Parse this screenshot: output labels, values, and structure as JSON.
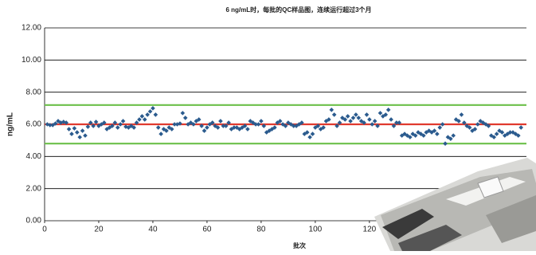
{
  "chart_data": {
    "type": "scatter",
    "title": "6 ng/mL时，每批的QC样品图，连续运行超过3个月",
    "x_label": "批次",
    "y_label": "ng/mL",
    "marker_color": "#2b5b8e",
    "reference_lines": [
      {
        "value": 6.0,
        "color": "#e03a2f"
      },
      {
        "value": 7.2,
        "color": "#6cc04a"
      },
      {
        "value": 4.8,
        "color": "#6cc04a"
      }
    ],
    "xlim": [
      0,
      178
    ],
    "ylim": [
      0,
      12
    ],
    "xticks": [
      0,
      20,
      40,
      60,
      80,
      100,
      120
    ],
    "yticks": [
      {
        "value": 0,
        "label": "0.00"
      },
      {
        "value": 2,
        "label": "2.00"
      },
      {
        "value": 4,
        "label": "4.00"
      },
      {
        "value": 6,
        "label": "6.00"
      },
      {
        "value": 8,
        "label": "8.00"
      },
      {
        "value": 10,
        "label": "10.00"
      },
      {
        "value": 12,
        "label": "12.00"
      }
    ],
    "grid": true,
    "x": [
      1,
      2,
      3,
      4,
      5,
      6,
      7,
      8,
      9,
      10,
      11,
      12,
      13,
      14,
      15,
      16,
      17,
      18,
      19,
      20,
      21,
      22,
      23,
      24,
      25,
      26,
      27,
      28,
      29,
      30,
      31,
      32,
      33,
      34,
      35,
      36,
      37,
      38,
      39,
      40,
      41,
      42,
      43,
      44,
      45,
      46,
      47,
      48,
      49,
      50,
      51,
      52,
      53,
      54,
      55,
      56,
      57,
      58,
      59,
      60,
      61,
      62,
      63,
      64,
      65,
      66,
      67,
      68,
      69,
      70,
      71,
      72,
      73,
      74,
      75,
      76,
      77,
      78,
      79,
      80,
      81,
      82,
      83,
      84,
      85,
      86,
      87,
      88,
      89,
      90,
      91,
      92,
      93,
      94,
      95,
      96,
      97,
      98,
      99,
      100,
      101,
      102,
      103,
      104,
      105,
      106,
      107,
      108,
      109,
      110,
      111,
      112,
      113,
      114,
      115,
      116,
      117,
      118,
      119,
      120,
      121,
      122,
      123,
      124,
      125,
      126,
      127,
      128,
      129,
      130,
      131,
      132,
      133,
      134,
      135,
      136,
      137,
      138,
      139,
      140,
      141,
      142,
      143,
      144,
      145,
      146,
      147,
      148,
      149,
      150,
      151,
      152,
      153,
      154,
      155,
      156,
      157,
      158,
      159,
      160,
      161,
      162,
      163,
      164,
      165,
      166,
      167,
      168,
      169,
      170,
      171,
      172,
      173,
      174,
      175,
      176
    ],
    "values": [
      6.0,
      5.95,
      5.95,
      6.05,
      6.2,
      6.1,
      6.15,
      6.1,
      5.7,
      5.4,
      5.75,
      5.5,
      5.2,
      5.6,
      5.3,
      5.85,
      6.1,
      5.9,
      6.15,
      5.9,
      6.0,
      6.1,
      5.7,
      5.8,
      5.9,
      6.1,
      5.8,
      6.0,
      6.2,
      5.85,
      5.8,
      5.9,
      5.8,
      6.1,
      6.3,
      6.5,
      6.3,
      6.6,
      6.8,
      7.0,
      6.6,
      5.8,
      5.4,
      5.7,
      5.6,
      5.8,
      5.7,
      6.0,
      6.0,
      6.05,
      6.7,
      6.4,
      6.0,
      6.1,
      6.0,
      6.2,
      6.3,
      5.9,
      5.6,
      5.8,
      6.0,
      6.1,
      5.9,
      5.8,
      6.2,
      5.9,
      5.9,
      6.1,
      5.7,
      5.8,
      5.8,
      5.7,
      5.8,
      5.9,
      5.7,
      6.2,
      6.1,
      6.0,
      6.0,
      6.2,
      5.9,
      5.5,
      5.6,
      5.7,
      5.8,
      6.1,
      6.2,
      6.0,
      5.9,
      6.1,
      6.0,
      5.9,
      5.9,
      6.0,
      6.1,
      5.4,
      5.5,
      5.2,
      5.4,
      5.8,
      5.9,
      5.7,
      5.8,
      6.2,
      6.3,
      6.9,
      6.6,
      5.9,
      6.1,
      6.4,
      6.3,
      6.5,
      6.2,
      6.4,
      6.6,
      6.4,
      6.2,
      6.1,
      6.6,
      6.3,
      6.0,
      6.2,
      5.9,
      6.7,
      6.5,
      6.6,
      6.9,
      6.3,
      5.9,
      6.1,
      6.1,
      5.3,
      5.4,
      5.3,
      5.2,
      5.4,
      5.3,
      5.5,
      5.4,
      5.3,
      5.5,
      5.6,
      5.5,
      5.6,
      5.4,
      5.8,
      6.0,
      4.8,
      5.2,
      5.1,
      5.3,
      6.3,
      6.2,
      6.6,
      6.1,
      5.9,
      5.8,
      5.6,
      5.7,
      6.0,
      6.2,
      6.1,
      6.0,
      5.9,
      5.3,
      5.2,
      5.4,
      5.6,
      5.5,
      5.3,
      5.4,
      5.5,
      5.5,
      5.4,
      5.3,
      5.8
    ]
  }
}
